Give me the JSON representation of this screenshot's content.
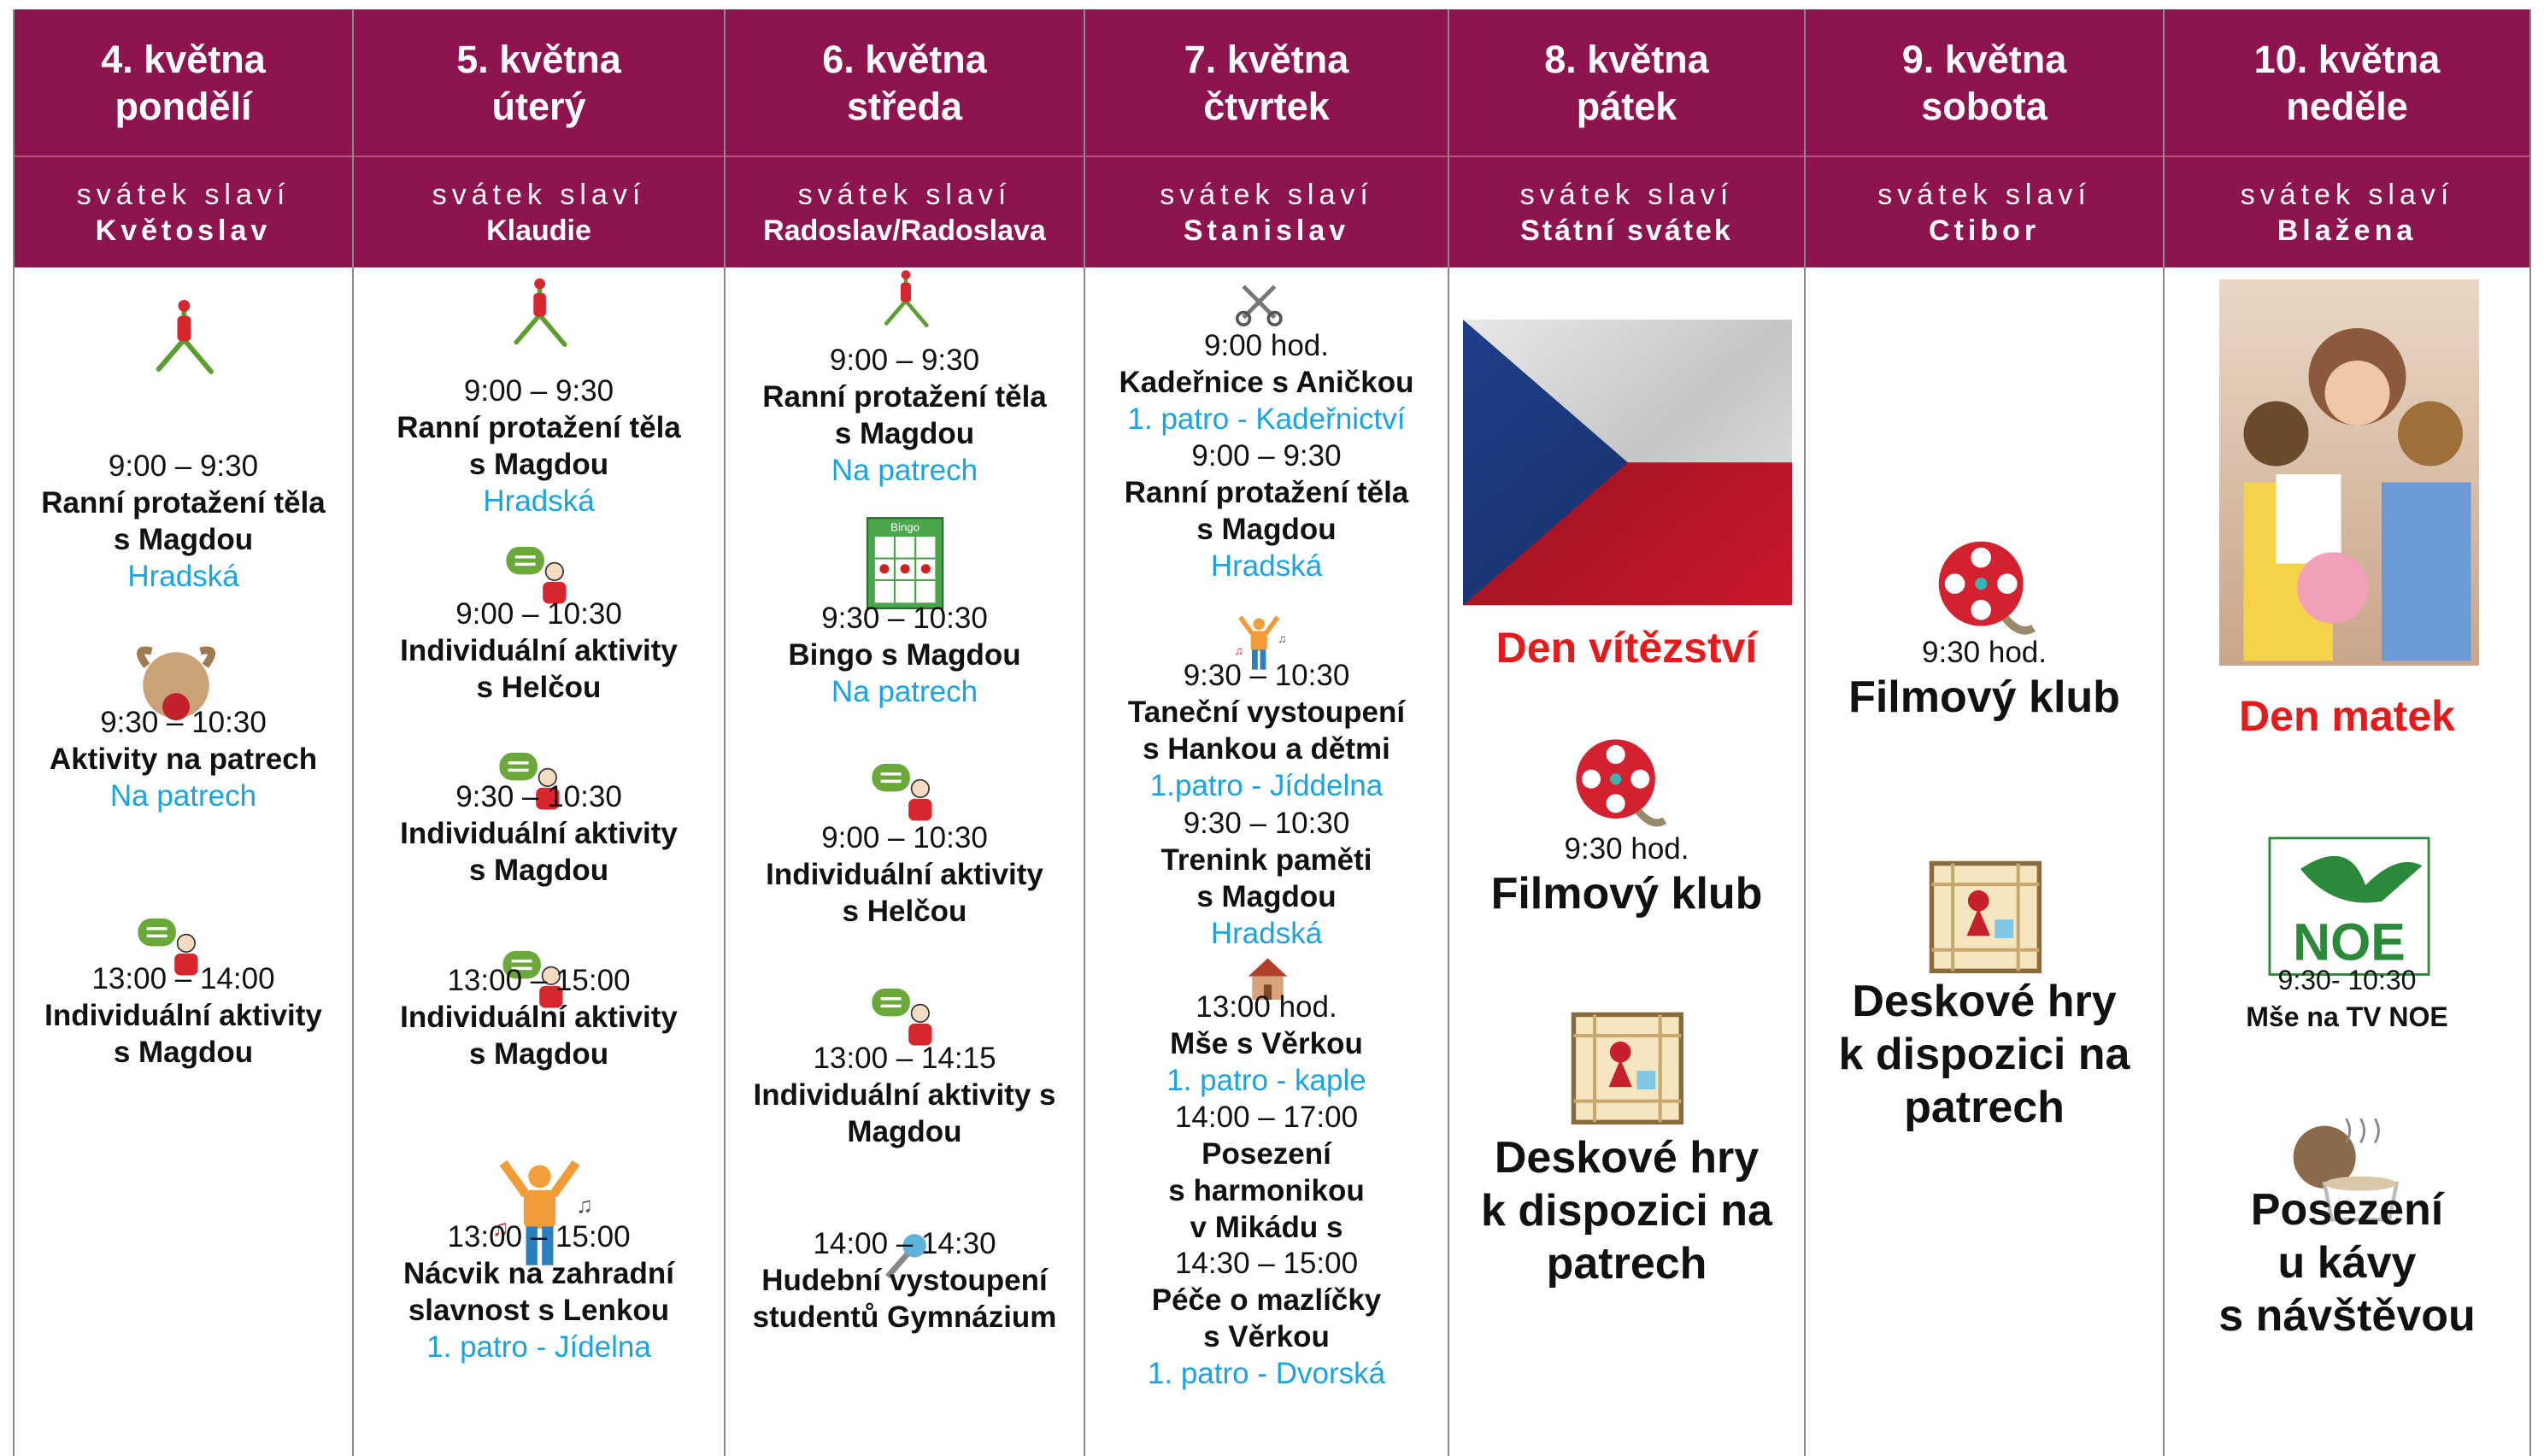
{
  "days": [
    {
      "date": "4. května",
      "weekday": "pondělí",
      "nameday_label": "svátek slaví",
      "nameday": "Květoslav",
      "events": [
        {
          "time": "9:00 – 9:30",
          "title": [
            "Ranní protažení těla",
            "s Magdou"
          ],
          "place": "Hradská"
        },
        {
          "time": "9:30 – 10:30",
          "title": [
            "Aktivity na patrech"
          ],
          "place": "Na patrech"
        },
        {
          "time": "13:00 – 14:00",
          "title": [
            "Individuální aktivity",
            "s Magdou"
          ]
        }
      ]
    },
    {
      "date": "5. května",
      "weekday": "úterý",
      "nameday_label": "svátek slaví",
      "nameday": "Klaudie",
      "events": [
        {
          "time": "9:00 – 9:30",
          "title": [
            "Ranní protažení těla",
            "s Magdou"
          ],
          "place": "Hradská"
        },
        {
          "time": "9:00 – 10:30",
          "title": [
            "Individuální aktivity",
            "s Helčou"
          ]
        },
        {
          "time": "9:30 – 10:30",
          "title": [
            "Individuální aktivity",
            "s Magdou"
          ]
        },
        {
          "time": "13:00 – 15:00",
          "title": [
            "Individuální aktivity",
            "s Magdou"
          ]
        },
        {
          "time": "13:00 – 15:00",
          "title": [
            "Nácvik na zahradní",
            "slavnost s Lenkou"
          ],
          "place": "1. patro - Jídelna"
        }
      ]
    },
    {
      "date": "6. května",
      "weekday": "středa",
      "nameday_label": "svátek slaví",
      "nameday": "Radoslav/Radoslava",
      "events": [
        {
          "time": "9:00 – 9:30",
          "title": [
            "Ranní protažení těla",
            "s Magdou"
          ],
          "place": "Na patrech"
        },
        {
          "time": "9:30 – 10:30",
          "title": [
            "Bingo s Magdou"
          ],
          "place": "Na patrech",
          "icon_text": "Bingo"
        },
        {
          "time": "9:00 – 10:30",
          "title": [
            "Individuální aktivity",
            "s Helčou"
          ]
        },
        {
          "time": "13:00 – 14:15",
          "title": [
            "Individuální aktivity s",
            "Magdou"
          ]
        },
        {
          "time": "14:00 – 14:30",
          "title": [
            "Hudební vystoupení",
            "studentů Gymnázium"
          ]
        }
      ]
    },
    {
      "date": "7. května",
      "weekday": "čtvrtek",
      "nameday_label": "svátek slaví",
      "nameday": "Stanislav",
      "events": [
        {
          "time": "9:00 hod.",
          "title": [
            "Kadeřnice s Aničkou"
          ],
          "place": "1. patro - Kadeřnictví"
        },
        {
          "time": "9:00 – 9:30",
          "title": [
            "Ranní protažení těla",
            "s Magdou"
          ],
          "place": "Hradská"
        },
        {
          "time": "9:30 – 10:30",
          "title": [
            "Taneční vystoupení",
            "s Hankou a dětmi"
          ],
          "place": "1.patro - Jíddelna"
        },
        {
          "time": "9:30 – 10:30",
          "title": [
            "Trenink paměti",
            "s Magdou"
          ],
          "place": "Hradská"
        },
        {
          "time": "13:00 hod.",
          "title": [
            "Mše s Věrkou"
          ],
          "place": "1. patro - kaple"
        },
        {
          "time": "14:00 – 17:00",
          "title": [
            "Posezení",
            "s harmonikou",
            "v Mikádu s"
          ]
        },
        {
          "time": "14:30 – 15:00",
          "title": [
            "Péče o mazlíčky",
            "s Věrkou"
          ],
          "place": "1. patro - Dvorská"
        }
      ]
    },
    {
      "date": "8. května",
      "weekday": "pátek",
      "nameday_label": "svátek slaví",
      "nameday": "Státní svátek",
      "highlight": "Den vítězství",
      "events": [
        {
          "time": "9:30 hod.",
          "title": [
            "Filmový klub"
          ]
        },
        {
          "title": [
            "Deskové hry",
            "k dispozici na",
            "patrech"
          ]
        }
      ]
    },
    {
      "date": "9. května",
      "weekday": "sobota",
      "nameday_label": "svátek slaví",
      "nameday": "Ctibor",
      "events": [
        {
          "time": "9:30 hod.",
          "title": [
            "Filmový klub"
          ]
        },
        {
          "title": [
            "Deskové hry",
            "k dispozici na",
            "patrech"
          ]
        }
      ]
    },
    {
      "date": "10. května",
      "weekday": "neděle",
      "nameday_label": "svátek slaví",
      "nameday": "Blažena",
      "highlight": "Den matek",
      "logo_text": "NOE",
      "events": [
        {
          "time": "9:30- 10:30",
          "title": [
            "Mše na TV NOE"
          ]
        },
        {
          "title": [
            "Posezení",
            "u kávy",
            "s návštěvou"
          ]
        }
      ]
    }
  ]
}
